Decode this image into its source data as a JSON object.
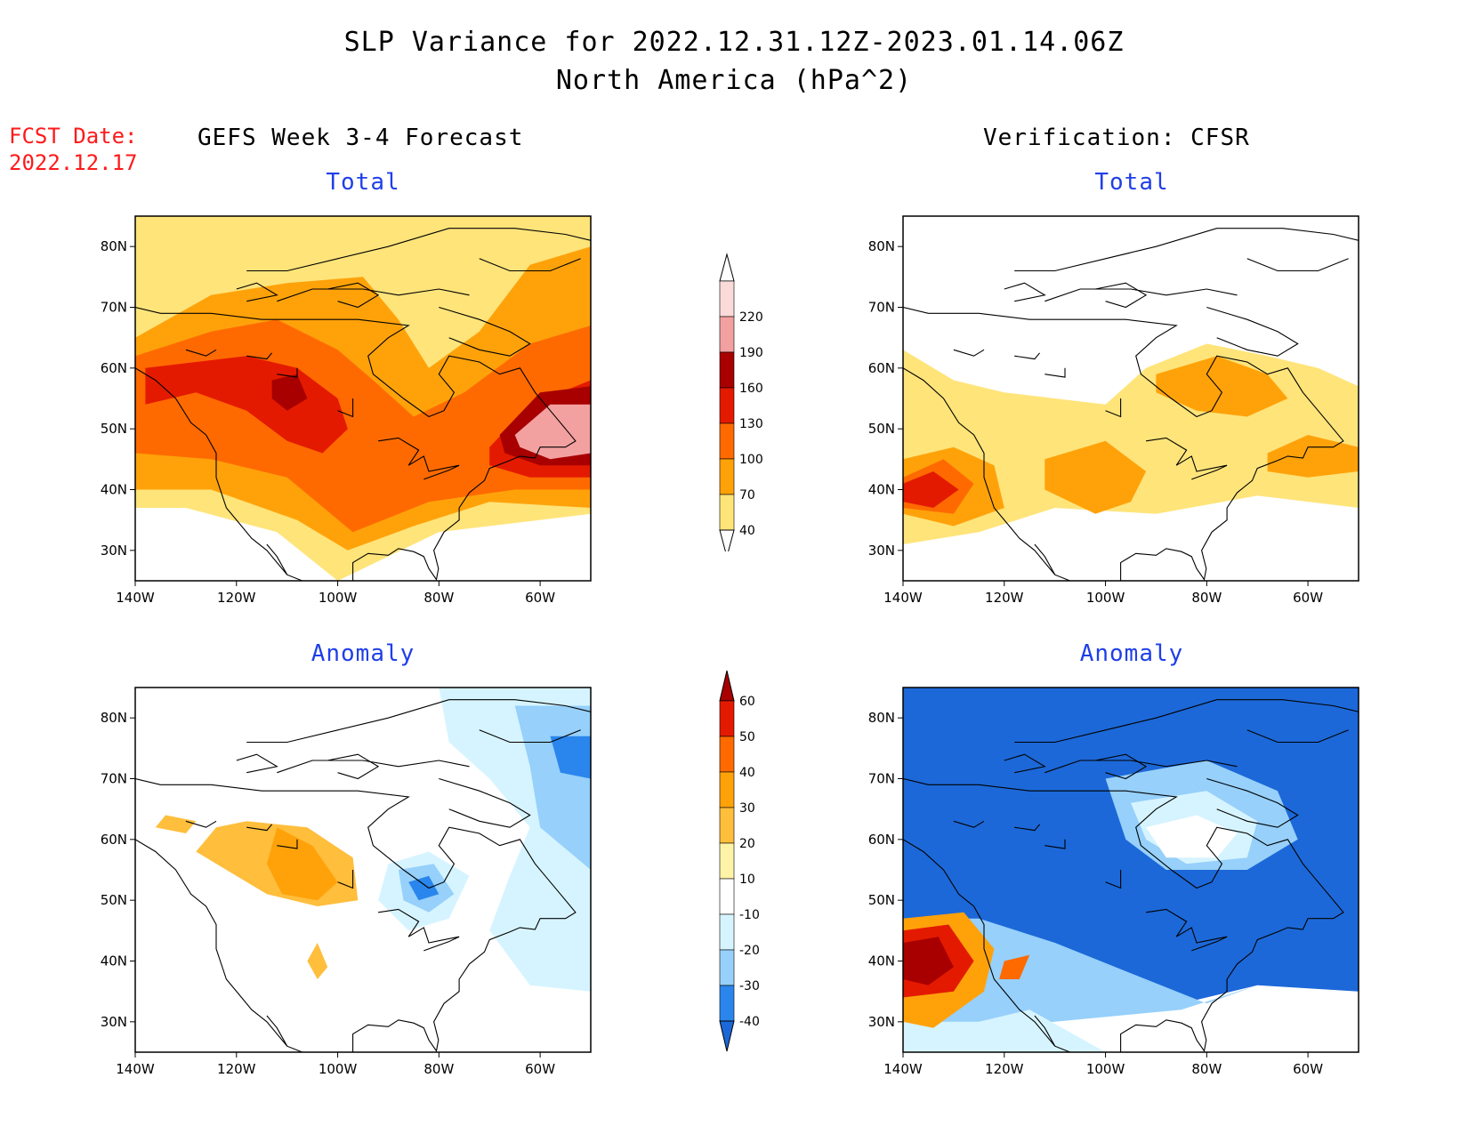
{
  "title": {
    "line1": "SLP Variance for 2022.12.31.12Z-2023.01.14.06Z",
    "line2": "North America (hPa^2)"
  },
  "forecast_date": {
    "label": "FCST Date:",
    "value": "2022.12.17"
  },
  "columns": {
    "left": "GEFS Week 3-4 Forecast",
    "right": "Verification: CFSR"
  },
  "axes": {
    "lon_ticks": [
      "140W",
      "120W",
      "100W",
      "80W",
      "60W"
    ],
    "lat_ticks": [
      "30N",
      "40N",
      "50N",
      "60N",
      "70N",
      "80N"
    ],
    "lon_values": [
      -140,
      -120,
      -100,
      -80,
      -60
    ],
    "lat_values": [
      30,
      40,
      50,
      60,
      70,
      80
    ],
    "lon_range": [
      -140,
      -50
    ],
    "lat_range": [
      25,
      85
    ]
  },
  "panels": [
    {
      "id": "gefs-total",
      "label": "Total"
    },
    {
      "id": "cfsr-total",
      "label": "Total"
    },
    {
      "id": "gefs-anomaly",
      "label": "Anomaly"
    },
    {
      "id": "cfsr-anomaly",
      "label": "Anomaly"
    }
  ],
  "colorbars": {
    "total": {
      "levels": [
        40,
        70,
        100,
        130,
        160,
        190,
        220
      ],
      "labels": [
        "40",
        "70",
        "100",
        "130",
        "160",
        "190",
        "220"
      ],
      "colors": [
        "#ffe47a",
        "#ffa20a",
        "#ff6a00",
        "#e41a00",
        "#a80000",
        "#f3a0a0",
        "#fbdada"
      ]
    },
    "anomaly": {
      "levels": [
        -40,
        -30,
        -20,
        -10,
        10,
        20,
        30,
        40,
        50,
        60
      ],
      "labels": [
        "-40",
        "-30",
        "-20",
        "-10",
        "10",
        "20",
        "30",
        "40",
        "50",
        "60"
      ],
      "colors": [
        "#1c68d8",
        "#2a86ec",
        "#96d0fb",
        "#d6f4ff",
        "#ffffff",
        "#fff3a8",
        "#ffbe3c",
        "#ffa20a",
        "#ff6a00",
        "#e41a00",
        "#a80000"
      ]
    }
  }
}
